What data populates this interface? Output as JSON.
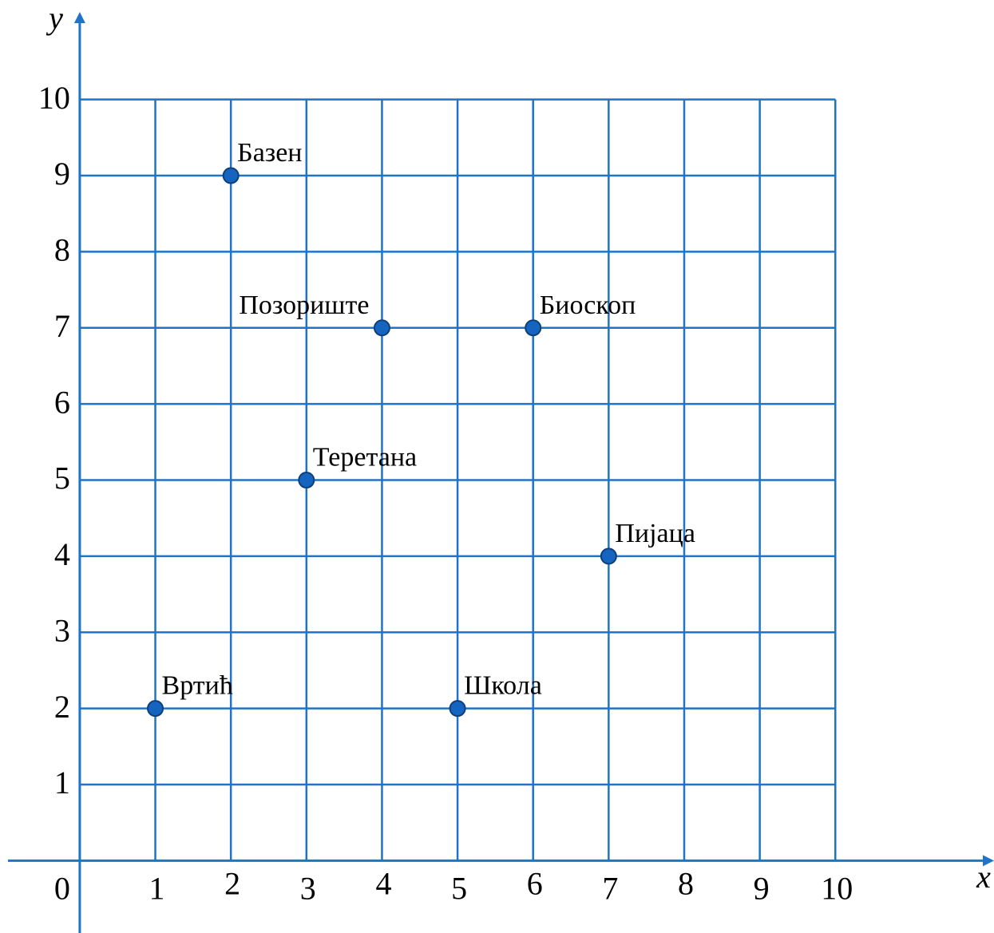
{
  "chart_data": {
    "type": "scatter",
    "x_label": "x",
    "y_label": "y",
    "x": [
      2,
      4,
      6,
      3,
      7,
      1,
      5
    ],
    "values": [
      9,
      7,
      7,
      5,
      4,
      2,
      2
    ],
    "labels": [
      "Базен",
      "Позориште",
      "Биоскоп",
      "Теретана",
      "Пијаца",
      "Вртић",
      "Школа"
    ],
    "color": "#1565c0",
    "line_color": "#1f73c8",
    "xlim": [
      -0.95,
      12.1
    ],
    "ylim": [
      -0.95,
      11.15
    ],
    "xticks": [
      0,
      1,
      2,
      3,
      4,
      5,
      6,
      7,
      8,
      9,
      10
    ],
    "yticks": [
      1,
      2,
      3,
      4,
      5,
      6,
      7,
      8,
      9,
      10
    ],
    "grid": true
  }
}
